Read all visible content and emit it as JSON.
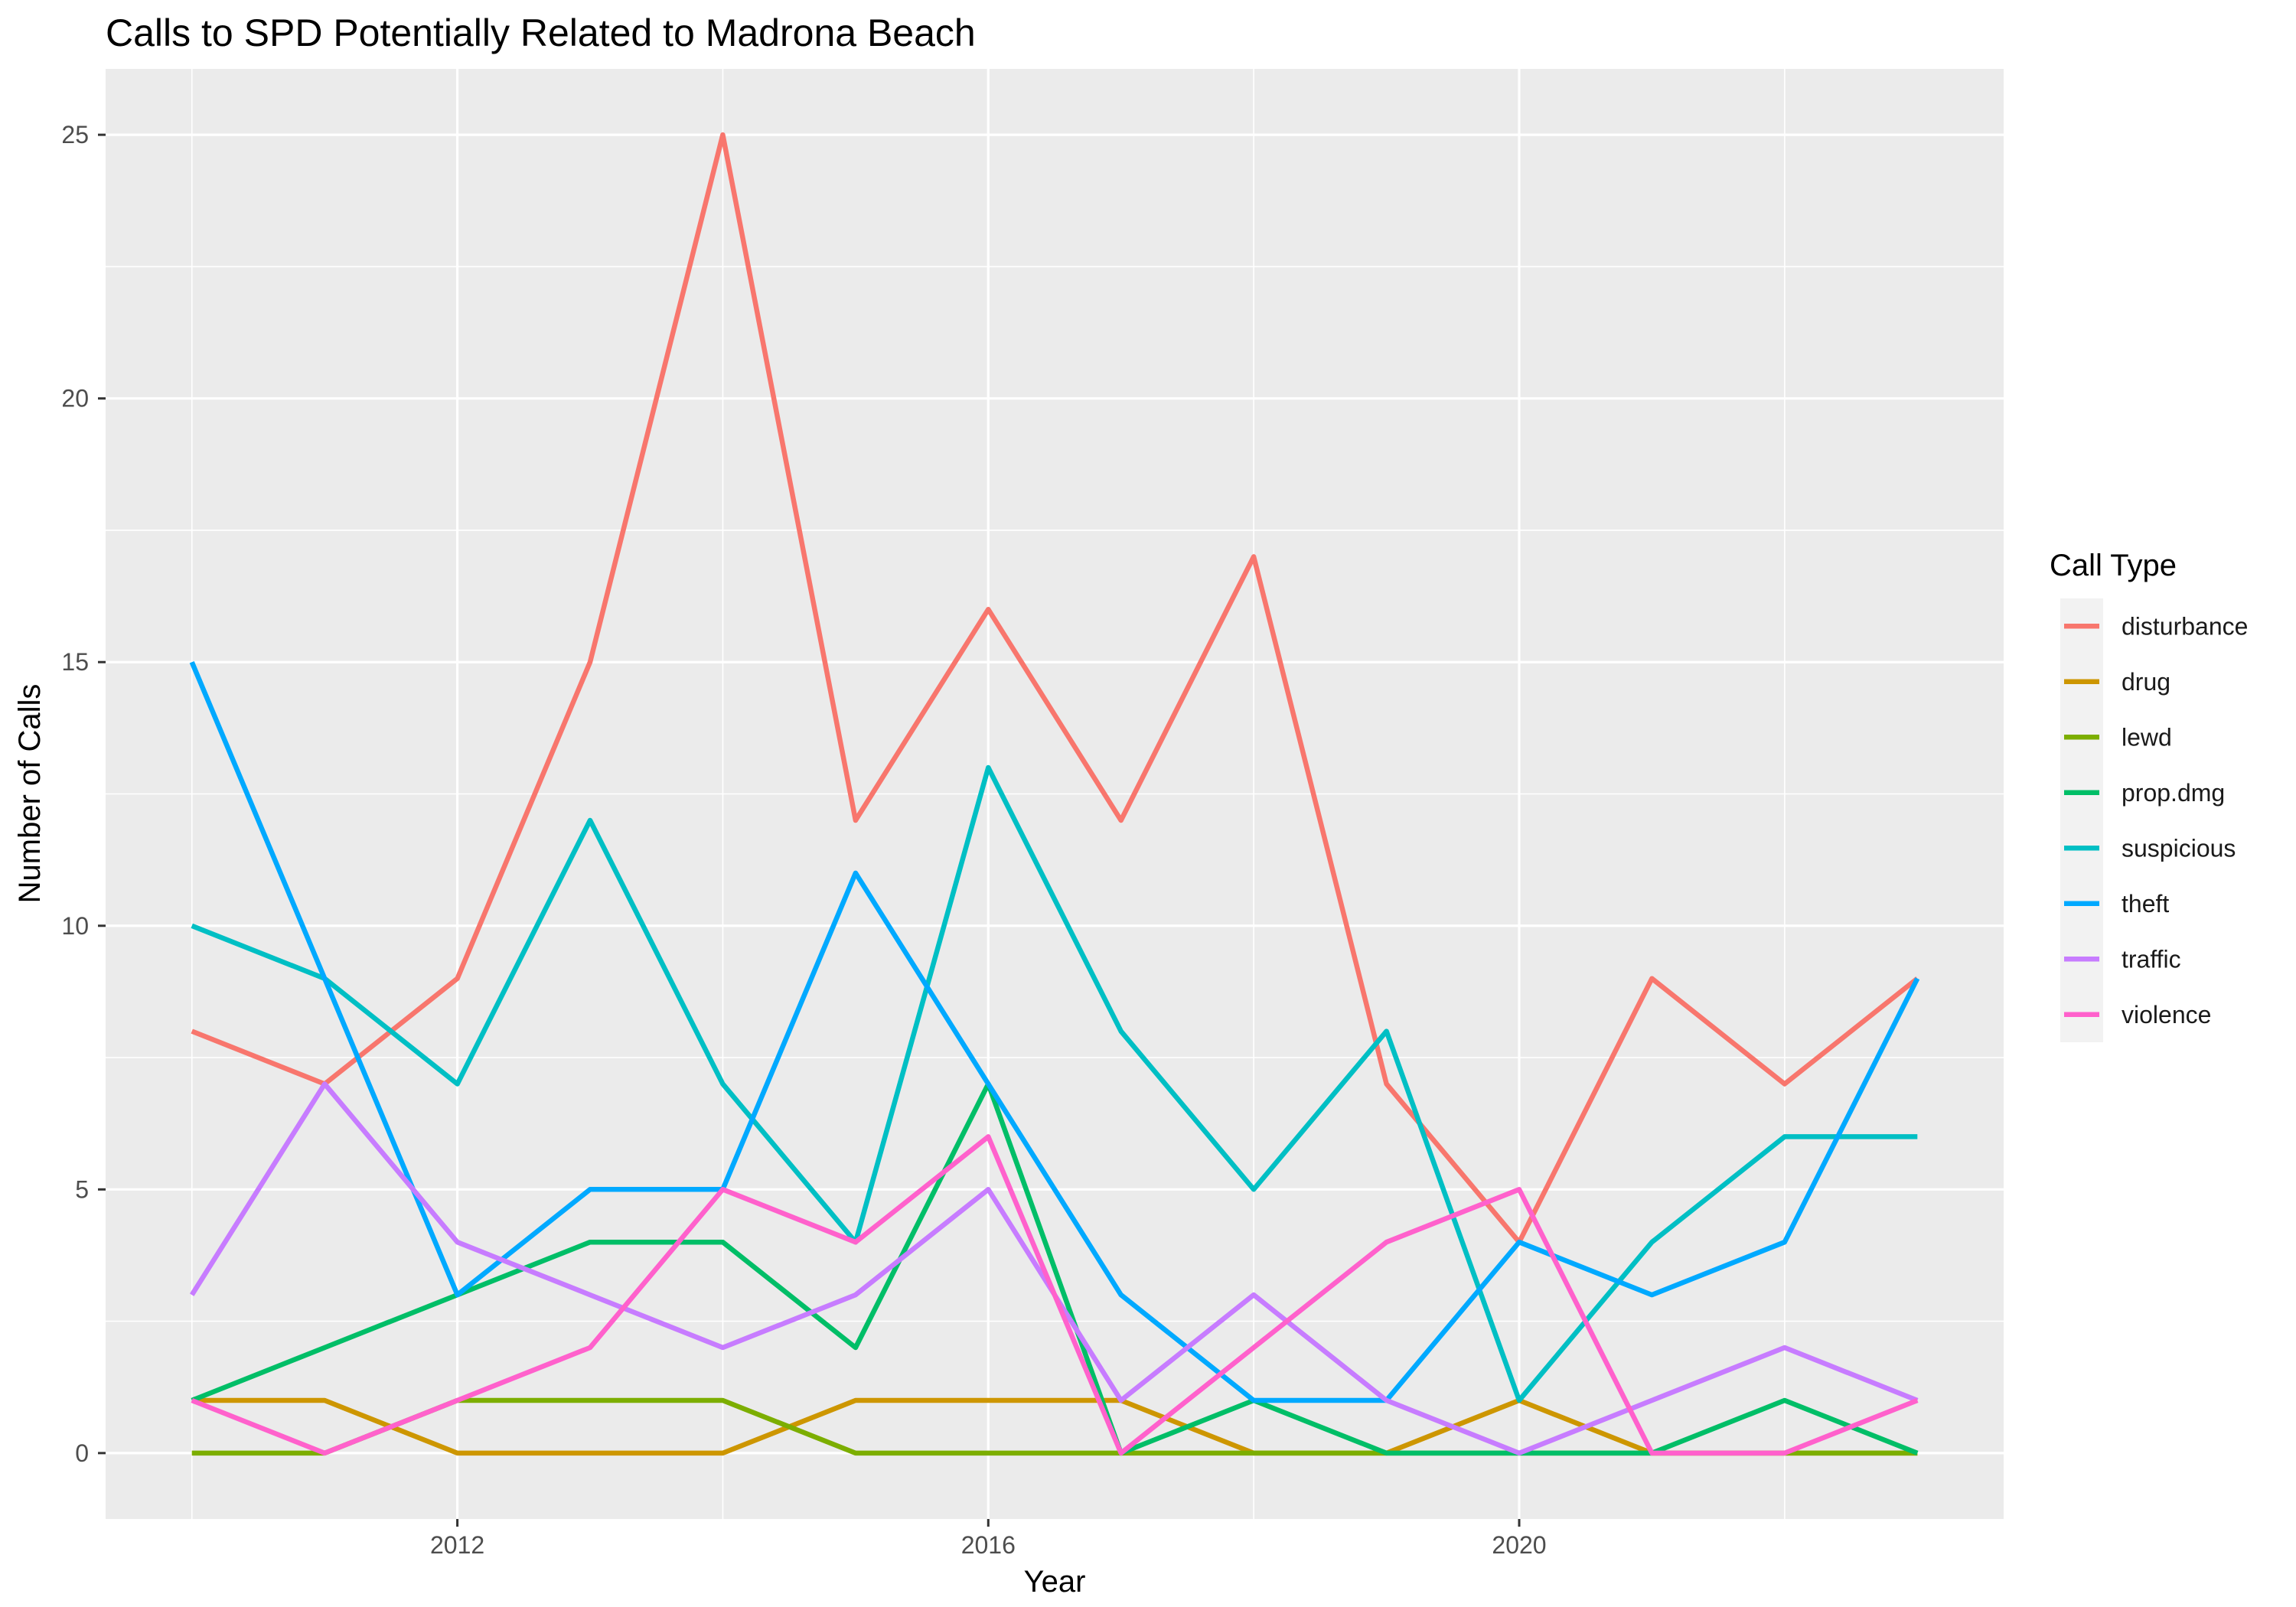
{
  "chart_data": {
    "type": "line",
    "title": "Calls to SPD Potentially Related to Madrona Beach",
    "xlabel": "Year",
    "ylabel": "Number of Calls",
    "x": [
      2010,
      2011,
      2012,
      2013,
      2014,
      2015,
      2016,
      2017,
      2018,
      2019,
      2020,
      2021,
      2022,
      2023
    ],
    "x_ticks": [
      2012,
      2016,
      2020
    ],
    "y_ticks": [
      0,
      5,
      10,
      15,
      20,
      25
    ],
    "xlim": [
      2009.35,
      2023.65
    ],
    "ylim": [
      -1.25,
      26.25
    ],
    "grid": true,
    "legend": {
      "title": "Call Type",
      "position": "right"
    },
    "series": [
      {
        "name": "disturbance",
        "color": "#F8766D",
        "values": [
          8,
          7,
          9,
          15,
          25,
          12,
          16,
          12,
          17,
          7,
          4,
          9,
          7,
          9
        ]
      },
      {
        "name": "drug",
        "color": "#CD9600",
        "values": [
          1,
          1,
          0,
          0,
          0,
          1,
          1,
          1,
          0,
          0,
          1,
          0,
          0,
          0
        ]
      },
      {
        "name": "lewd",
        "color": "#7CAE00",
        "values": [
          0,
          0,
          1,
          1,
          1,
          0,
          0,
          0,
          0,
          0,
          0,
          0,
          0,
          0
        ]
      },
      {
        "name": "prop.dmg",
        "color": "#00BE67",
        "values": [
          1,
          2,
          3,
          4,
          4,
          2,
          7,
          0,
          1,
          0,
          0,
          0,
          1,
          0
        ]
      },
      {
        "name": "suspicious",
        "color": "#00BFC4",
        "values": [
          10,
          9,
          7,
          12,
          7,
          4,
          13,
          8,
          5,
          8,
          1,
          4,
          6,
          6
        ]
      },
      {
        "name": "theft",
        "color": "#00A9FF",
        "values": [
          15,
          9,
          3,
          5,
          5,
          11,
          7,
          3,
          1,
          1,
          4,
          3,
          4,
          9
        ]
      },
      {
        "name": "traffic",
        "color": "#C77CFF",
        "values": [
          3,
          7,
          4,
          3,
          2,
          3,
          5,
          1,
          3,
          1,
          0,
          1,
          2,
          1
        ]
      },
      {
        "name": "violence",
        "color": "#FF61CC",
        "values": [
          1,
          0,
          1,
          2,
          5,
          4,
          6,
          0,
          2,
          4,
          5,
          0,
          0,
          1
        ]
      }
    ]
  }
}
